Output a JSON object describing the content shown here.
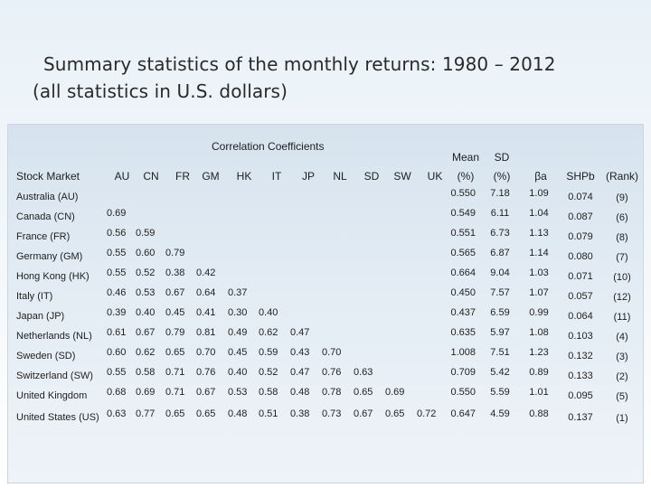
{
  "title": {
    "line1": "Summary statistics of the monthly returns: 1980 – 2012",
    "line2": "(all statistics in U.S. dollars)"
  },
  "table": {
    "corr_title": "Correlation Coefficients",
    "headers": {
      "stock_market": "Stock Market",
      "countries": [
        "AU",
        "CN",
        "FR",
        "GM",
        "HK",
        "IT",
        "JP",
        "NL",
        "SD",
        "SW",
        "UK"
      ],
      "mean_top": "Mean",
      "mean_bottom": "(%)",
      "sd_top": "SD",
      "sd_bottom": "(%)",
      "beta": "βa",
      "shp": "SHPb",
      "rank": "(Rank)"
    },
    "rows": [
      {
        "name": "Australia (AU)",
        "corr": [],
        "mean": "0.550",
        "sd": "7.18",
        "beta": "1.09",
        "shp": "0.074",
        "rank": "(9)"
      },
      {
        "name": "Canada (CN)",
        "corr": [
          "0.69"
        ],
        "mean": "0.549",
        "sd": "6.11",
        "beta": "1.04",
        "shp": "0.087",
        "rank": "(6)"
      },
      {
        "name": "France (FR)",
        "corr": [
          "0.56",
          "0.59"
        ],
        "mean": "0.551",
        "sd": "6.73",
        "beta": "1.13",
        "shp": "0.079",
        "rank": "(8)"
      },
      {
        "name": "Germany (GM)",
        "corr": [
          "0.55",
          "0.60",
          "0.79"
        ],
        "mean": "0.565",
        "sd": "6.87",
        "beta": "1.14",
        "shp": "0.080",
        "rank": "(7)"
      },
      {
        "name": "Hong Kong (HK)",
        "corr": [
          "0.55",
          "0.52",
          "0.38",
          "0.42"
        ],
        "mean": "0.664",
        "sd": "9.04",
        "beta": "1.03",
        "shp": "0.071",
        "rank": "(10)"
      },
      {
        "name": "Italy (IT)",
        "corr": [
          "0.46",
          "0.53",
          "0.67",
          "0.64",
          "0.37"
        ],
        "mean": "0.450",
        "sd": "7.57",
        "beta": "1.07",
        "shp": "0.057",
        "rank": "(12)"
      },
      {
        "name": "Japan (JP)",
        "corr": [
          "0.39",
          "0.40",
          "0.45",
          "0.41",
          "0.30",
          "0.40"
        ],
        "mean": "0.437",
        "sd": "6.59",
        "beta": "0.99",
        "shp": "0.064",
        "rank": "(11)"
      },
      {
        "name": "Netherlands (NL)",
        "corr": [
          "0.61",
          "0.67",
          "0.79",
          "0.81",
          "0.49",
          "0.62",
          "0.47"
        ],
        "mean": "0.635",
        "sd": "5.97",
        "beta": "1.08",
        "shp": "0.103",
        "rank": "(4)"
      },
      {
        "name": "Sweden (SD)",
        "corr": [
          "0.60",
          "0.62",
          "0.65",
          "0.70",
          "0.45",
          "0.59",
          "0.43",
          "0.70"
        ],
        "mean": "1.008",
        "sd": "7.51",
        "beta": "1.23",
        "shp": "0.132",
        "rank": "(3)"
      },
      {
        "name": "Switzerland (SW)",
        "corr": [
          "0.55",
          "0.58",
          "0.71",
          "0.76",
          "0.40",
          "0.52",
          "0.47",
          "0.76",
          "0.63"
        ],
        "mean": "0.709",
        "sd": "5.42",
        "beta": "0.89",
        "shp": "0.133",
        "rank": "(2)"
      },
      {
        "name": "United Kingdom",
        "corr": [
          "0.68",
          "0.69",
          "0.71",
          "0.67",
          "0.53",
          "0.58",
          "0.48",
          "0.78",
          "0.65",
          "0.69"
        ],
        "mean": "0.550",
        "sd": "5.59",
        "beta": "1.01",
        "shp": "0.095",
        "rank": "(5)"
      },
      {
        "name": "United States (US)",
        "corr": [
          "0.63",
          "0.77",
          "0.65",
          "0.65",
          "0.48",
          "0.51",
          "0.38",
          "0.73",
          "0.67",
          "0.65",
          "0.72"
        ],
        "mean": "0.647",
        "sd": "4.59",
        "beta": "0.88",
        "shp": "0.137",
        "rank": "(1)"
      }
    ]
  }
}
